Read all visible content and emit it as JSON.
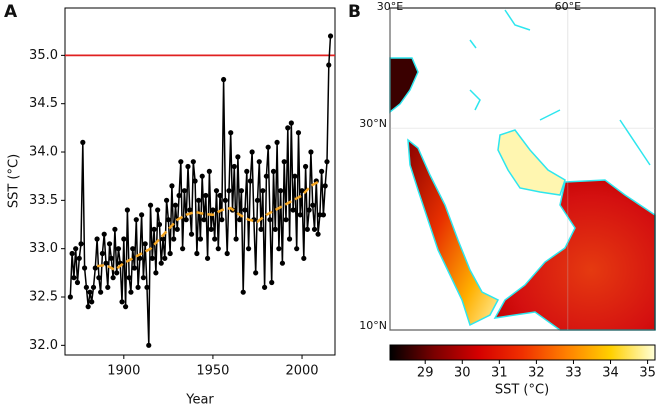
{
  "chart_data": [
    {
      "type": "line",
      "panel": "A",
      "xlabel": "Year",
      "ylabel": "SST (°C)",
      "x": [
        1870,
        1871,
        1872,
        1873,
        1874,
        1875,
        1876,
        1877,
        1878,
        1879,
        1880,
        1881,
        1882,
        1883,
        1884,
        1885,
        1886,
        1887,
        1888,
        1889,
        1890,
        1891,
        1892,
        1893,
        1894,
        1895,
        1896,
        1897,
        1898,
        1899,
        1900,
        1901,
        1902,
        1903,
        1904,
        1905,
        1906,
        1907,
        1908,
        1909,
        1910,
        1911,
        1912,
        1913,
        1914,
        1915,
        1916,
        1917,
        1918,
        1919,
        1920,
        1921,
        1922,
        1923,
        1924,
        1925,
        1926,
        1927,
        1928,
        1929,
        1930,
        1931,
        1932,
        1933,
        1934,
        1935,
        1936,
        1937,
        1938,
        1939,
        1940,
        1941,
        1942,
        1943,
        1944,
        1945,
        1946,
        1947,
        1948,
        1949,
        1950,
        1951,
        1952,
        1953,
        1954,
        1955,
        1956,
        1957,
        1958,
        1959,
        1960,
        1961,
        1962,
        1963,
        1964,
        1965,
        1966,
        1967,
        1968,
        1969,
        1970,
        1971,
        1972,
        1973,
        1974,
        1975,
        1976,
        1977,
        1978,
        1979,
        1980,
        1981,
        1982,
        1983,
        1984,
        1985,
        1986,
        1987,
        1988,
        1989,
        1990,
        1991,
        1992,
        1993,
        1994,
        1995,
        1996,
        1997,
        1998,
        1999,
        2000,
        2001,
        2002,
        2003,
        2004,
        2005,
        2006,
        2007,
        2008,
        2009,
        2010,
        2011,
        2012,
        2013,
        2014,
        2015,
        2016
      ],
      "series": [
        {
          "color": "#000000",
          "values": [
            32.5,
            32.95,
            32.7,
            33.0,
            32.65,
            32.9,
            33.05,
            34.1,
            32.8,
            32.6,
            32.4,
            32.55,
            32.45,
            32.6,
            32.8,
            33.1,
            32.7,
            32.55,
            32.95,
            33.15,
            32.85,
            32.6,
            33.05,
            32.9,
            32.7,
            33.2,
            32.75,
            33.0,
            32.85,
            32.45,
            33.1,
            32.4,
            33.4,
            32.7,
            32.55,
            33.0,
            32.8,
            33.3,
            32.6,
            32.9,
            33.35,
            32.7,
            33.05,
            32.6,
            32.0,
            33.45,
            32.9,
            33.2,
            32.75,
            33.4,
            33.25,
            32.85,
            33.1,
            32.9,
            33.5,
            33.3,
            32.95,
            33.65,
            33.1,
            33.45,
            33.2,
            33.55,
            33.9,
            33.0,
            33.6,
            33.3,
            33.85,
            33.4,
            33.15,
            33.9,
            33.7,
            32.95,
            33.5,
            33.1,
            33.75,
            33.3,
            33.55,
            32.9,
            33.8,
            33.2,
            33.4,
            33.1,
            33.6,
            33.0,
            33.55,
            33.3,
            34.75,
            33.5,
            32.95,
            33.6,
            34.2,
            33.4,
            33.85,
            33.1,
            33.95,
            33.3,
            33.6,
            32.55,
            33.4,
            33.8,
            33.0,
            33.7,
            34.0,
            33.3,
            32.75,
            33.5,
            33.9,
            33.2,
            33.6,
            32.6,
            33.75,
            34.05,
            33.3,
            32.65,
            33.8,
            33.2,
            34.1,
            33.0,
            33.6,
            32.85,
            33.9,
            33.3,
            34.25,
            33.1,
            34.3,
            33.4,
            33.75,
            33.0,
            34.2,
            33.35,
            33.6,
            32.9,
            33.85,
            33.2,
            33.4,
            34.0,
            33.45,
            33.2,
            33.7,
            33.15,
            33.35,
            33.8,
            33.35,
            33.65,
            33.9,
            34.9,
            35.2
          ]
        },
        {
          "color": "#f5a623",
          "dashed": true,
          "x": [
            1885,
            1890,
            1895,
            1900,
            1905,
            1910,
            1915,
            1920,
            1925,
            1930,
            1935,
            1940,
            1945,
            1950,
            1955,
            1960,
            1965,
            1970,
            1975,
            1980,
            1985,
            1990,
            1995,
            2000,
            2005,
            2010
          ],
          "values": [
            32.82,
            32.83,
            32.78,
            32.85,
            32.9,
            32.95,
            33.0,
            33.1,
            33.2,
            33.3,
            33.35,
            33.38,
            33.36,
            33.35,
            33.4,
            33.42,
            33.35,
            33.3,
            33.28,
            33.35,
            33.4,
            33.45,
            33.5,
            33.55,
            33.65,
            33.7
          ]
        }
      ],
      "hline": 35.0,
      "hline_color": "#e02020",
      "xlim": [
        1867,
        2018.5
      ],
      "xticks": [
        1900,
        1950,
        2000
      ],
      "ylim": [
        31.9,
        35.49
      ],
      "yticks": [
        {
          "value": 32,
          "label": "32.0"
        },
        32.5,
        {
          "value": 33,
          "label": "33.0"
        },
        33.5,
        {
          "value": 34,
          "label": "34.0"
        },
        34.5,
        {
          "value": 35,
          "label": "35.0"
        }
      ]
    },
    {
      "type": "map",
      "panel": "B",
      "xlim": [
        30,
        74.7
      ],
      "xticks": [
        {
          "value": 30,
          "label": "30°E"
        },
        {
          "value": 60,
          "label": "60°E"
        }
      ],
      "ylim": [
        10,
        41.9
      ],
      "yticks": [
        {
          "value": 10,
          "label": "10°N"
        },
        {
          "value": 30,
          "label": "30°N"
        }
      ],
      "colorbar_label": "SST (°C)",
      "clim": [
        28.05,
        35.2
      ],
      "cticks": [
        29,
        30,
        31,
        32,
        33,
        34,
        35
      ],
      "colormap": [
        "#000000",
        "#7a0000",
        "#d40000",
        "#f03000",
        "#ff8000",
        "#ffd000",
        "#ffffd8"
      ]
    }
  ]
}
